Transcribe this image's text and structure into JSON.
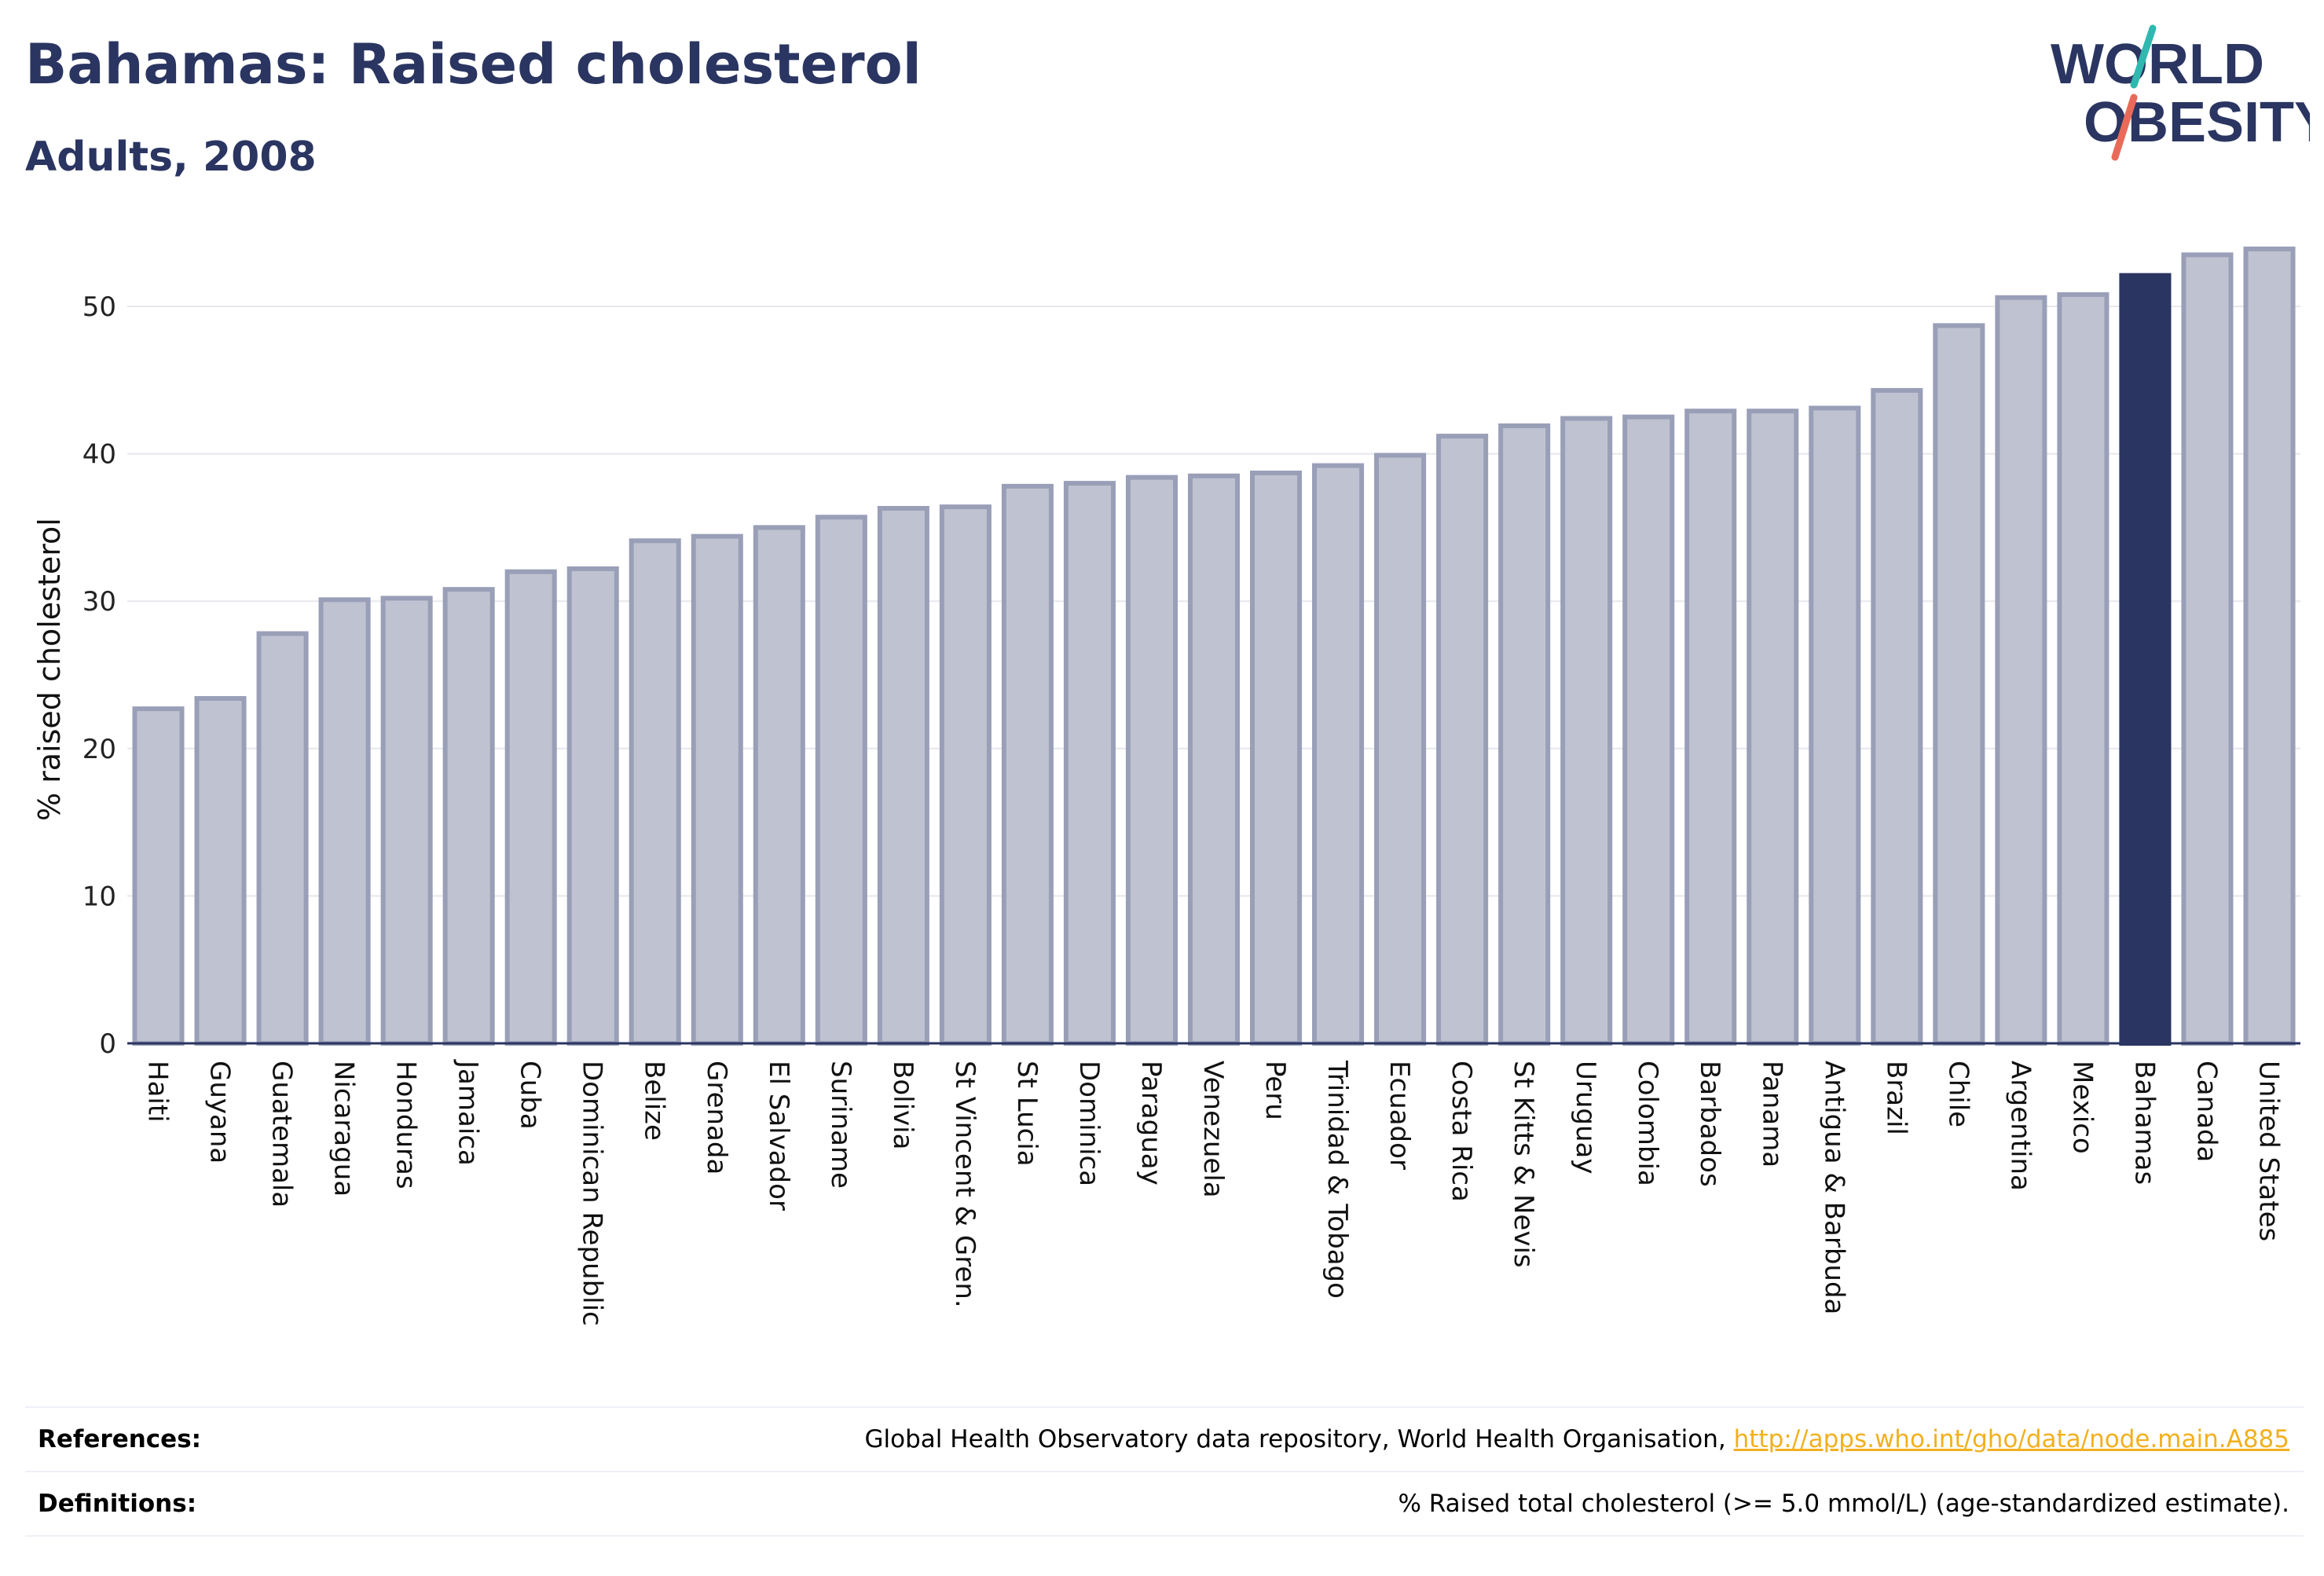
{
  "header": {
    "title": "Bahamas: Raised cholesterol",
    "subtitle": "Adults, 2008"
  },
  "logo": {
    "line1": "WORLD",
    "line2": "OBESITY"
  },
  "colors": {
    "bar_default": "#bfc2d0",
    "bar_border": "#9a9fb8",
    "bar_highlight": "#2a3561",
    "text_dark": "#2a3561",
    "link": "#f2b01e",
    "logo_teal": "#2fb8b0",
    "logo_coral": "#ea6a5a"
  },
  "chart_data": {
    "type": "bar",
    "title": "Bahamas: Raised cholesterol",
    "subtitle": "Adults, 2008",
    "xlabel": "",
    "ylabel": "% raised cholesterol",
    "ylim": [
      0,
      55
    ],
    "yticks": [
      0,
      10,
      20,
      30,
      40,
      50
    ],
    "grid": true,
    "highlight": "Bahamas",
    "categories": [
      "Haiti",
      "Guyana",
      "Guatemala",
      "Nicaragua",
      "Honduras",
      "Jamaica",
      "Cuba",
      "Dominican Republic",
      "Belize",
      "Grenada",
      "El Salvador",
      "Suriname",
      "Bolivia",
      "St Vincent & Gren.",
      "St Lucia",
      "Dominica",
      "Paraguay",
      "Venezuela",
      "Peru",
      "Trinidad & Tobago",
      "Ecuador",
      "Costa Rica",
      "St Kitts & Nevis",
      "Uruguay",
      "Colombia",
      "Barbados",
      "Panama",
      "Antigua & Barbuda",
      "Brazil",
      "Chile",
      "Argentina",
      "Mexico",
      "Bahamas",
      "Canada",
      "United States"
    ],
    "values": [
      22.7,
      23.4,
      27.8,
      30.1,
      30.2,
      30.8,
      32.0,
      32.2,
      34.1,
      34.4,
      35.0,
      35.7,
      36.3,
      36.4,
      37.8,
      38.0,
      38.4,
      38.5,
      38.7,
      39.2,
      39.9,
      41.2,
      41.9,
      42.4,
      42.5,
      42.9,
      42.9,
      43.1,
      44.3,
      48.7,
      50.6,
      50.8,
      52.1,
      53.5,
      53.9
    ]
  },
  "footer": {
    "references_label": "References:",
    "references_text": "Global Health Observatory data repository, World Health Organisation, ",
    "references_link": "http://apps.who.int/gho/data/node.main.A885",
    "definitions_label": "Definitions:",
    "definitions_text": "% Raised total cholesterol (>= 5.0 mmol/L) (age-standardized estimate)."
  }
}
